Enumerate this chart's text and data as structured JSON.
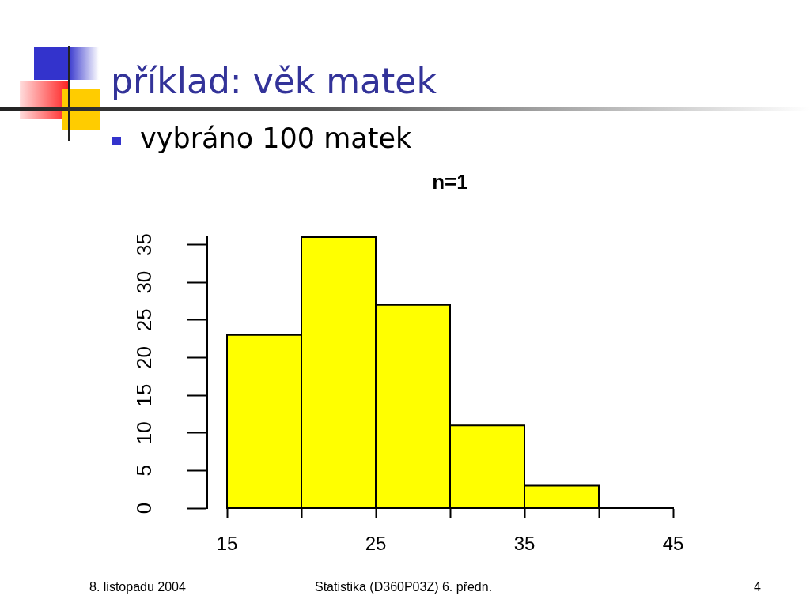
{
  "chart_data": {
    "type": "histogram",
    "title": "příklad: věk matek",
    "subtitle": "vybráno 100 matek",
    "annotations": [
      "n=1",
      "8. listopadu 2004",
      "Statistika (D360P03Z) 6. předn.",
      "4"
    ],
    "bins": [
      15,
      20,
      25,
      30,
      35,
      40
    ],
    "values": [
      23,
      36,
      27,
      11,
      3
    ],
    "color": "#ffff00",
    "xlim": [
      15,
      45
    ],
    "xticks": [
      15,
      {
        "value": 20,
        "label": null
      },
      25,
      {
        "value": 30,
        "label": null
      },
      35,
      {
        "value": 40,
        "label": null
      },
      45
    ],
    "ylim": [
      0,
      36
    ],
    "yticks": [
      0,
      5,
      10,
      15,
      20,
      25,
      30,
      35
    ]
  }
}
